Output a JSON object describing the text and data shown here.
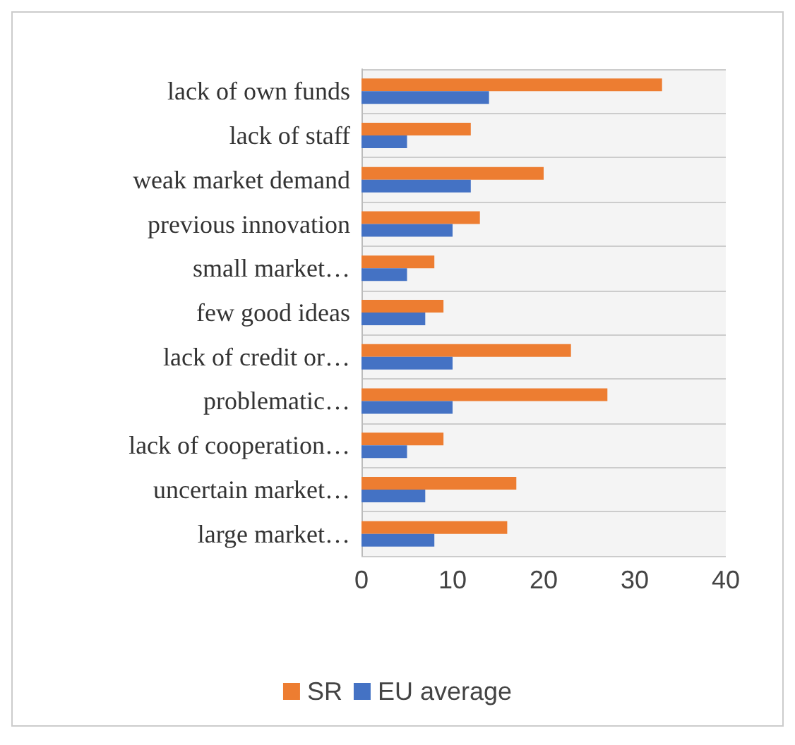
{
  "chart_data": {
    "type": "bar",
    "orientation": "horizontal",
    "categories": [
      "lack of own funds",
      "lack of staff",
      "weak market demand",
      "previous innovation",
      "small market…",
      "few good ideas",
      "lack of credit or…",
      "problematic…",
      "lack of cooperation…",
      "uncertain market…",
      "large market…"
    ],
    "series": [
      {
        "name": "SR",
        "color": "#ed7d31",
        "values": [
          33,
          12,
          20,
          13,
          8,
          9,
          23,
          27,
          9,
          17,
          16
        ]
      },
      {
        "name": "EU average",
        "color": "#4472c4",
        "values": [
          14,
          5,
          12,
          10,
          5,
          7,
          10,
          10,
          5,
          7,
          8
        ]
      }
    ],
    "xlim": [
      0,
      40
    ],
    "xticks": [
      0,
      10,
      20,
      30,
      40
    ],
    "grid": false,
    "legend": "bottom"
  }
}
